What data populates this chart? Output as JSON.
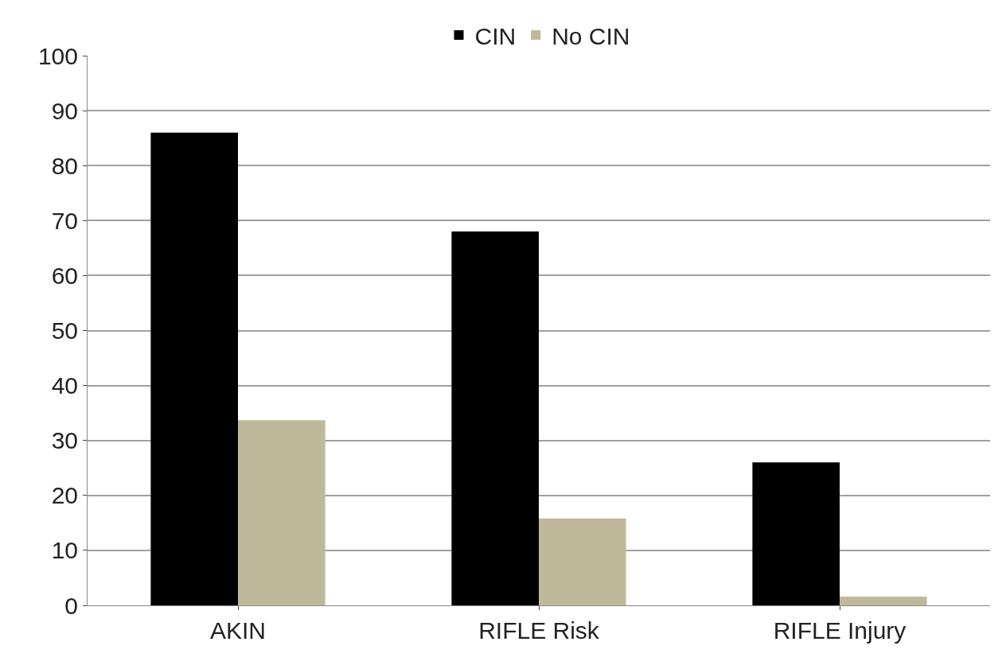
{
  "chart_data": {
    "type": "bar",
    "categories": [
      "AKIN",
      "RIFLE Risk",
      "RIFLE Injury"
    ],
    "series": [
      {
        "name": "CIN",
        "color": "#000000",
        "values": [
          86,
          68,
          26
        ]
      },
      {
        "name": "No CIN",
        "color": "#bfb89b",
        "values": [
          33.7,
          15.8,
          1.6
        ]
      }
    ],
    "ylim": [
      0,
      100
    ],
    "yticks": [
      0,
      10,
      20,
      30,
      40,
      50,
      60,
      70,
      80,
      90,
      100
    ],
    "grid": "y",
    "legend": "top"
  }
}
